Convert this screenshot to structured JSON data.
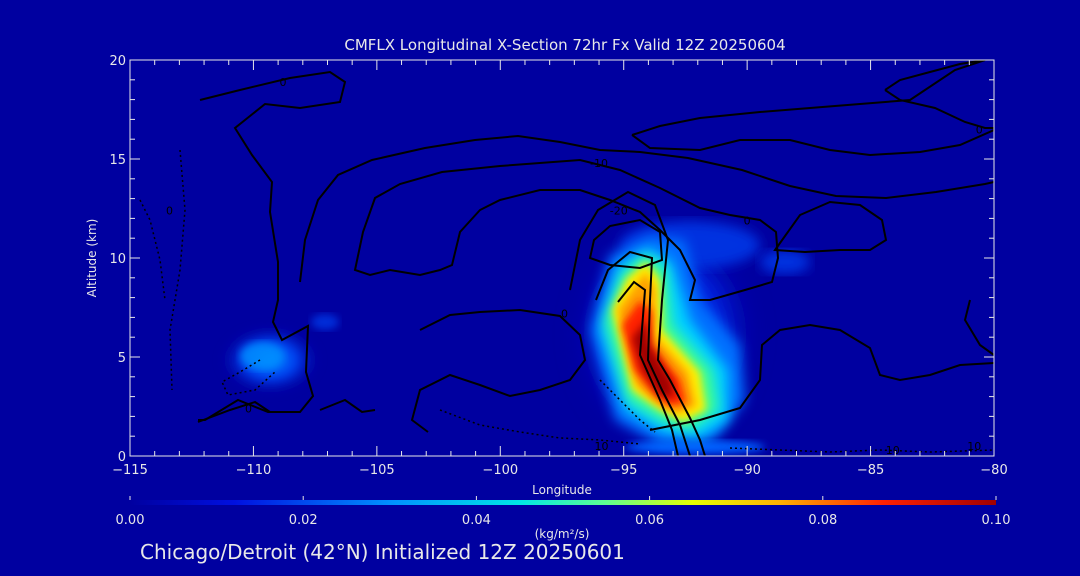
{
  "chart_data": {
    "type": "heatmap",
    "title": "CMFLX Longitudinal X-Section 72hr  Fx Valid 12Z 20250604",
    "xlabel": "Longitude",
    "ylabel": "Altitude (km)",
    "xlim": [
      -115,
      -80
    ],
    "ylim": [
      0,
      20
    ],
    "x_ticks": [
      "-115",
      "-110",
      "-105",
      "-100",
      "-95",
      "-90",
      "-85",
      "-80"
    ],
    "y_ticks": [
      "0",
      "5",
      "10",
      "15",
      "20"
    ],
    "colorbar": {
      "label": "(kg/m²/s)",
      "range": [
        0.0,
        0.1
      ],
      "ticks": [
        "0.00",
        "0.02",
        "0.04",
        "0.06",
        "0.08",
        "0.10"
      ]
    },
    "flux_features": [
      {
        "name": "western-cell",
        "lon": -109.5,
        "alt_km": 4.8,
        "max": 0.025
      },
      {
        "name": "main-updraft-core",
        "lon": -93.8,
        "alt_km": 4.5,
        "max": 0.1
      },
      {
        "name": "anvil-outflow",
        "lon": -93.5,
        "alt_km": 11.3,
        "max": 0.015
      },
      {
        "name": "surface-band",
        "lon": -93.2,
        "alt_km": 0.4,
        "max": 0.02
      }
    ],
    "contour_labels": [
      {
        "text": "0",
        "lon": -108.8,
        "alt_km": 18.9
      },
      {
        "text": "-10",
        "lon": -96.0,
        "alt_km": 14.8
      },
      {
        "text": "-20",
        "lon": -95.2,
        "alt_km": 12.4
      },
      {
        "text": "0",
        "lon": -90.0,
        "alt_km": 11.9
      },
      {
        "text": "0",
        "lon": -80.6,
        "alt_km": 16.5
      },
      {
        "text": "0",
        "lon": -113.4,
        "alt_km": 12.4
      },
      {
        "text": "0",
        "lon": -110.2,
        "alt_km": 2.4
      },
      {
        "text": "0",
        "lon": -97.4,
        "alt_km": 7.2
      },
      {
        "text": "10",
        "lon": -95.9,
        "alt_km": 0.5
      },
      {
        "text": "10",
        "lon": -84.1,
        "alt_km": 0.3
      },
      {
        "text": "10",
        "lon": -80.8,
        "alt_km": 0.5
      }
    ]
  },
  "footer": "Chicago/Detroit (42°N) Initialized 12Z 20250601",
  "colors": {
    "background": "#0000a0",
    "text": "#e8e8e8",
    "contour": "#000000"
  }
}
